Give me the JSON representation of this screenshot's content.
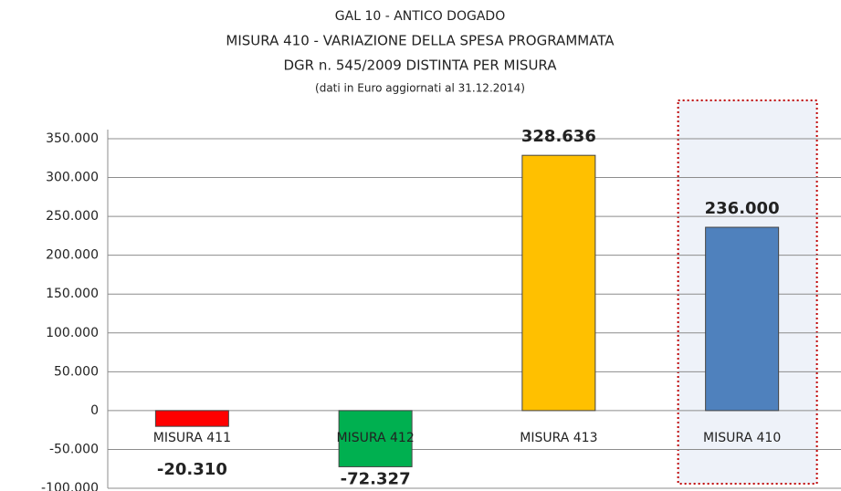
{
  "chart_data": {
    "type": "bar",
    "title": [
      "GAL 10 - ANTICO DOGADO",
      "MISURA 410 - VARIAZIONE DELLA SPESA PROGRAMMATA",
      "DGR n. 545/2009  DISTINTA PER MISURA"
    ],
    "subtitle": "(dati in Euro aggiornati al 31.12.2014)",
    "categories": [
      "MISURA 411",
      "MISURA 412",
      "MISURA 413",
      "MISURA 410"
    ],
    "values": [
      -20310,
      -72327,
      328636,
      236000
    ],
    "value_labels": [
      "-20.310",
      "-72.327",
      "328.636",
      "236.000"
    ],
    "colors": [
      "#ff0000",
      "#00b050",
      "#ffc000",
      "#4f81bd"
    ],
    "highlight_index": 3,
    "ylim": [
      -100000,
      350000
    ],
    "yticks": [
      {
        "value": -100000,
        "label": "-100.000"
      },
      {
        "value": -50000,
        "label": "-50.000"
      },
      0,
      {
        "value": 50000,
        "label": "50.000"
      },
      {
        "value": 100000,
        "label": "100.000"
      },
      {
        "value": 150000,
        "label": "150.000"
      },
      {
        "value": 200000,
        "label": "200.000"
      },
      {
        "value": 250000,
        "label": "250.000"
      },
      {
        "value": 300000,
        "label": "300.000"
      },
      {
        "value": 350000,
        "label": "350.000"
      }
    ],
    "grid": true
  }
}
